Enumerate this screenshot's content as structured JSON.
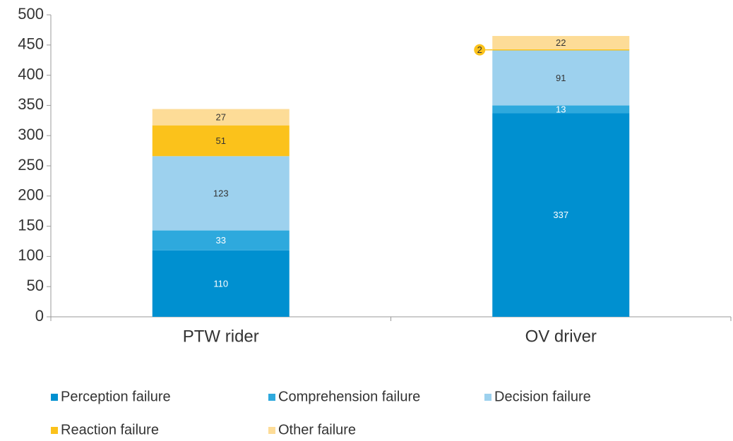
{
  "chart_data": {
    "type": "stacked_bar",
    "categories": [
      "PTW rider",
      "OV driver"
    ],
    "series": [
      {
        "name": "Perception failure",
        "color": "#0090d0",
        "values": [
          110,
          337
        ]
      },
      {
        "name": "Comprehension failure",
        "color": "#2ea9dd",
        "values": [
          33,
          13
        ]
      },
      {
        "name": "Decision failure",
        "color": "#9dd1ee",
        "values": [
          123,
          91
        ]
      },
      {
        "name": "Reaction failure",
        "color": "#fbc21b",
        "values": [
          51,
          2
        ]
      },
      {
        "name": "Other failure",
        "color": "#fddc97",
        "values": [
          27,
          22
        ]
      }
    ],
    "ylim": [
      0,
      500
    ],
    "yticks": [
      0,
      50,
      100,
      150,
      200,
      250,
      300,
      350,
      400,
      450,
      500
    ]
  }
}
